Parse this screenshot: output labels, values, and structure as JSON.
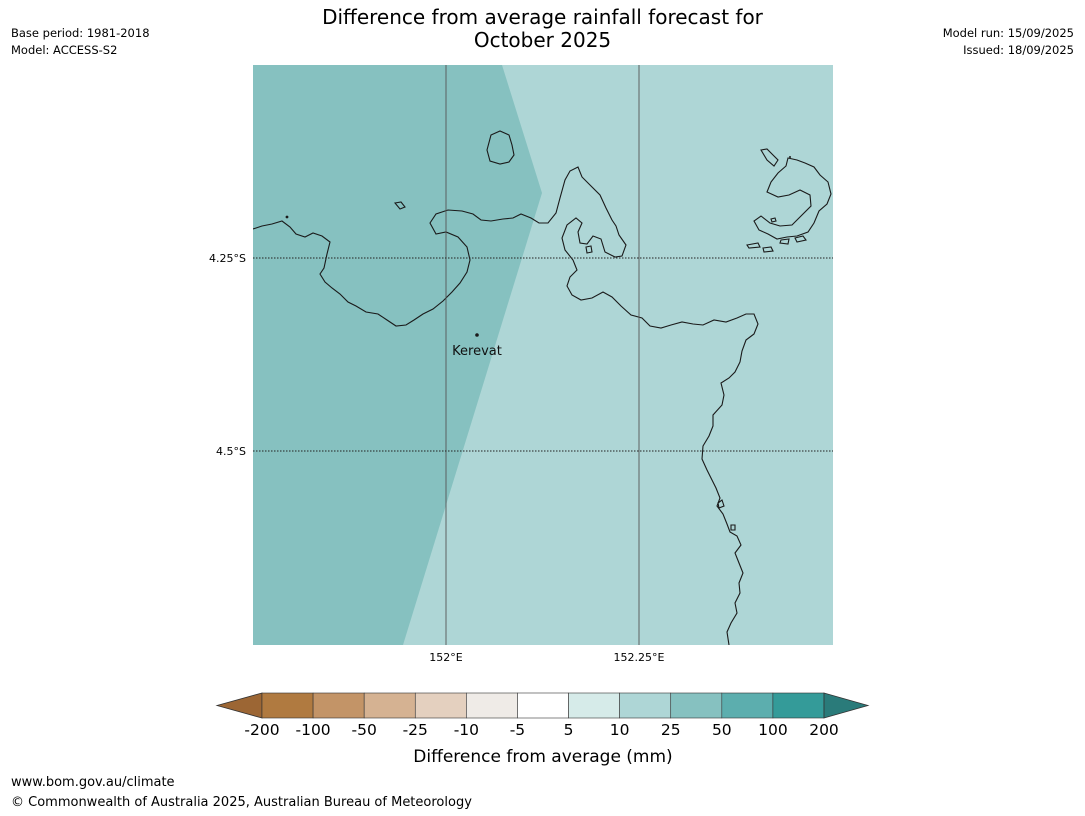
{
  "header": {
    "title_line1": "Difference from average rainfall forecast for",
    "title_line2": "October 2025",
    "base_period": "Base period: 1981-2018",
    "model": "Model: ACCESS-S2",
    "model_run": "Model run: 15/09/2025",
    "issued": "Issued: 18/09/2025"
  },
  "map": {
    "lat_labels": [
      "4.25°S",
      "4.5°S"
    ],
    "lon_labels": [
      "152°E",
      "152.25°E"
    ],
    "places": [
      {
        "name": "Kerevat"
      }
    ],
    "regions": [
      {
        "category": "25 to 50",
        "color": "#86c1c0"
      },
      {
        "category": "10 to 25",
        "color": "#aed6d6"
      }
    ]
  },
  "legend": {
    "title": "Difference from average (mm)",
    "ticks": [
      "-200",
      "-100",
      "-50",
      "-25",
      "-10",
      "-5",
      "5",
      "10",
      "25",
      "50",
      "100",
      "200"
    ],
    "colors": [
      "#9c6634",
      "#b07a40",
      "#c39467",
      "#d5b292",
      "#e4d0bf",
      "#efebe7",
      "#ffffff",
      "#d6ebe9",
      "#aed6d6",
      "#86c1c0",
      "#5caeae",
      "#349b99",
      "#2a7b7a"
    ]
  },
  "footer": {
    "url": "www.bom.gov.au/climate",
    "copyright": "© Commonwealth of Australia 2025, Australian Bureau of Meteorology"
  }
}
